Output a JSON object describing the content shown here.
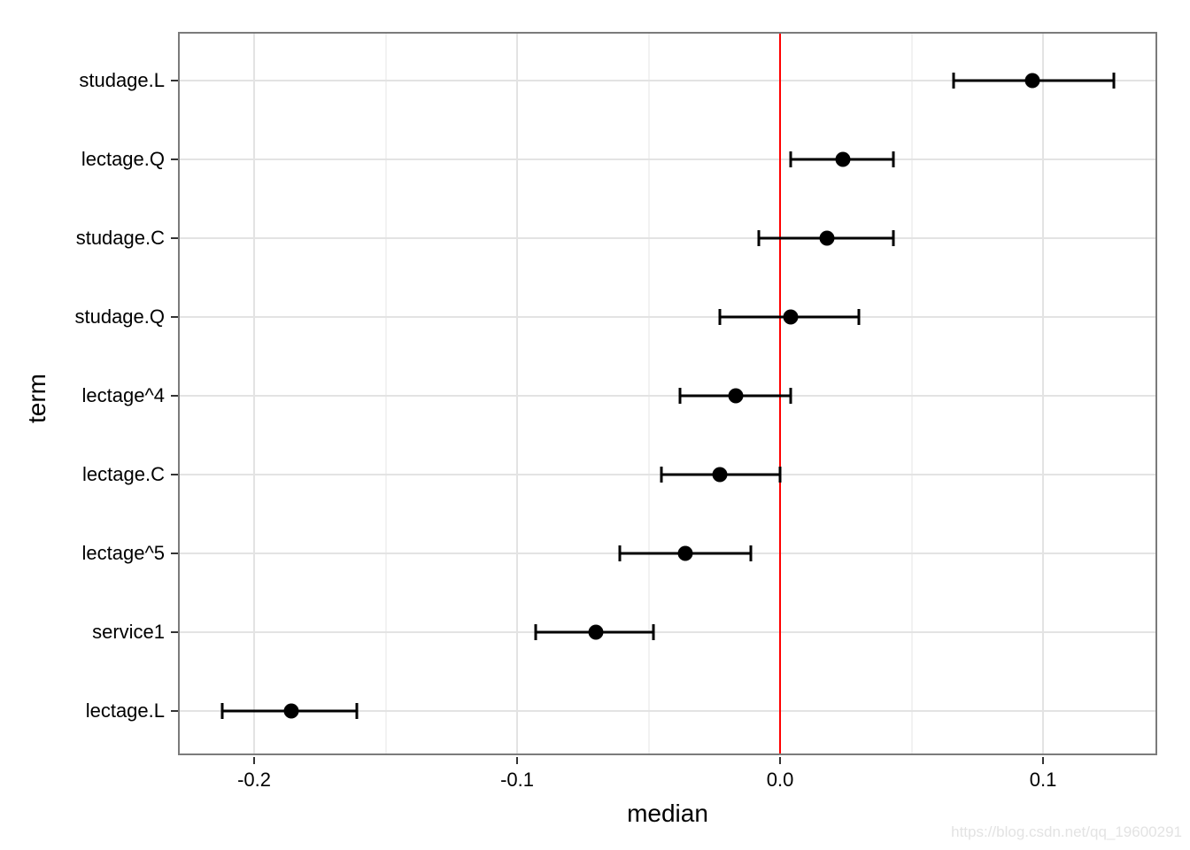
{
  "watermark": "https://blog.csdn.net/qq_19600291",
  "style": {
    "background": "#ffffff",
    "panel_border": "#7b7b7b",
    "grid_major": "#e3e3e3",
    "grid_minor": "#f2f2f2",
    "tick_color": "#333333",
    "text_color": "#000000",
    "point_color": "#000000",
    "vline_color": "#ff0000",
    "watermark_color": "#e3e3e3"
  },
  "chart_data": {
    "type": "scatter",
    "subtype": "pointrange-horizontal",
    "title": "",
    "xlabel": "median",
    "ylabel": "term",
    "xlim": [
      -0.2283,
      0.1441
    ],
    "x_major_ticks": [
      -0.2,
      -0.1,
      0.0,
      0.1
    ],
    "x_tick_labels": [
      "-0.2",
      "-0.1",
      "0.0",
      "0.1"
    ],
    "x_minor_gridlines": [
      -0.15,
      -0.05,
      0.05
    ],
    "grid": true,
    "legend": "none",
    "reference_vline_x": 0.0,
    "categories": [
      "studage.L",
      "lectage.Q",
      "studage.C",
      "studage.Q",
      "lectage^4",
      "lectage.C",
      "lectage^5",
      "service1",
      "lectage.L"
    ],
    "series": [
      {
        "name": "median with interval",
        "points": [
          {
            "term": "studage.L",
            "median": 0.096,
            "low": 0.066,
            "high": 0.127
          },
          {
            "term": "lectage.Q",
            "median": 0.024,
            "low": 0.004,
            "high": 0.043
          },
          {
            "term": "studage.C",
            "median": 0.018,
            "low": -0.008,
            "high": 0.043
          },
          {
            "term": "studage.Q",
            "median": 0.004,
            "low": -0.023,
            "high": 0.03
          },
          {
            "term": "lectage^4",
            "median": -0.017,
            "low": -0.038,
            "high": 0.004
          },
          {
            "term": "lectage.C",
            "median": -0.023,
            "low": -0.045,
            "high": 0.0
          },
          {
            "term": "lectage^5",
            "median": -0.036,
            "low": -0.061,
            "high": -0.011
          },
          {
            "term": "service1",
            "median": -0.07,
            "low": -0.093,
            "high": -0.048
          },
          {
            "term": "lectage.L",
            "median": -0.186,
            "low": -0.212,
            "high": -0.161
          }
        ]
      }
    ]
  }
}
